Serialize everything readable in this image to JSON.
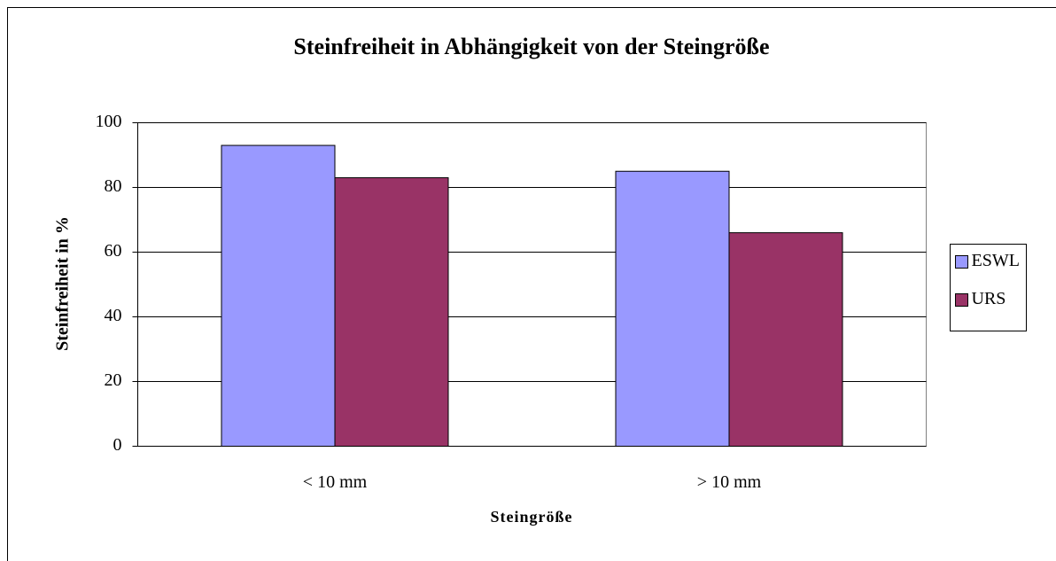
{
  "chart_data": {
    "type": "bar",
    "title": "Steinfreiheit in Abhängigkeit von der Steingröße",
    "x_label": "Steingröße",
    "y_label": "Steinfreiheit in %",
    "categories": [
      "< 10 mm",
      "> 10 mm"
    ],
    "series": [
      {
        "name": "ESWL",
        "color": "#9999ff",
        "values": [
          93,
          85
        ]
      },
      {
        "name": "URS",
        "color": "#993366",
        "values": [
          83,
          66
        ]
      }
    ],
    "ylim": [
      0,
      100
    ],
    "yticks": [
      0,
      20,
      40,
      60,
      80,
      100
    ],
    "grid": true,
    "legend": "right"
  }
}
